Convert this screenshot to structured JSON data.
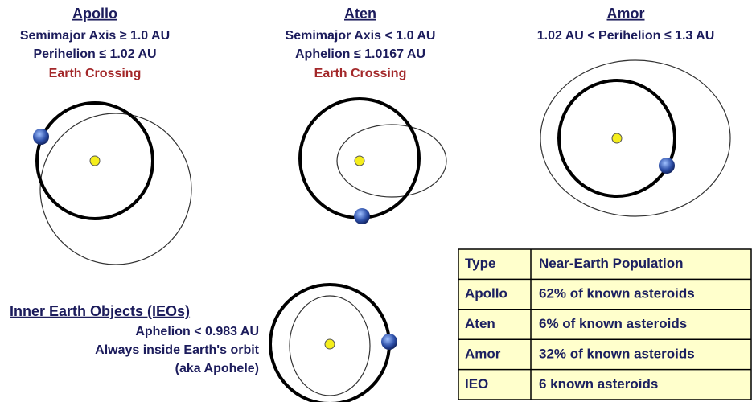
{
  "apollo": {
    "title": "Apollo",
    "lines": [
      "Semimajor Axis ≥ 1.0 AU",
      "Perihelion ≤ 1.02 AU"
    ],
    "note": "Earth Crossing"
  },
  "aten": {
    "title": "Aten",
    "lines": [
      "Semimajor Axis < 1.0 AU",
      "Aphelion ≤ 1.0167 AU"
    ],
    "note": "Earth Crossing"
  },
  "amor": {
    "title": "Amor",
    "lines": [
      "1.02 AU < Perihelion ≤ 1.3 AU"
    ]
  },
  "ieo": {
    "title": "Inner Earth Objects (IEOs)",
    "lines": [
      "Aphelion < 0.983 AU",
      "Always inside Earth's orbit",
      "(aka Apohele)"
    ]
  },
  "table": {
    "header": [
      "Type",
      "Near-Earth Population"
    ],
    "rows": [
      [
        "Apollo",
        "62% of known asteroids"
      ],
      [
        "Aten",
        "6% of known asteroids"
      ],
      [
        "Amor",
        "32% of known asteroids"
      ],
      [
        "IEO",
        "6 known asteroids"
      ]
    ]
  }
}
